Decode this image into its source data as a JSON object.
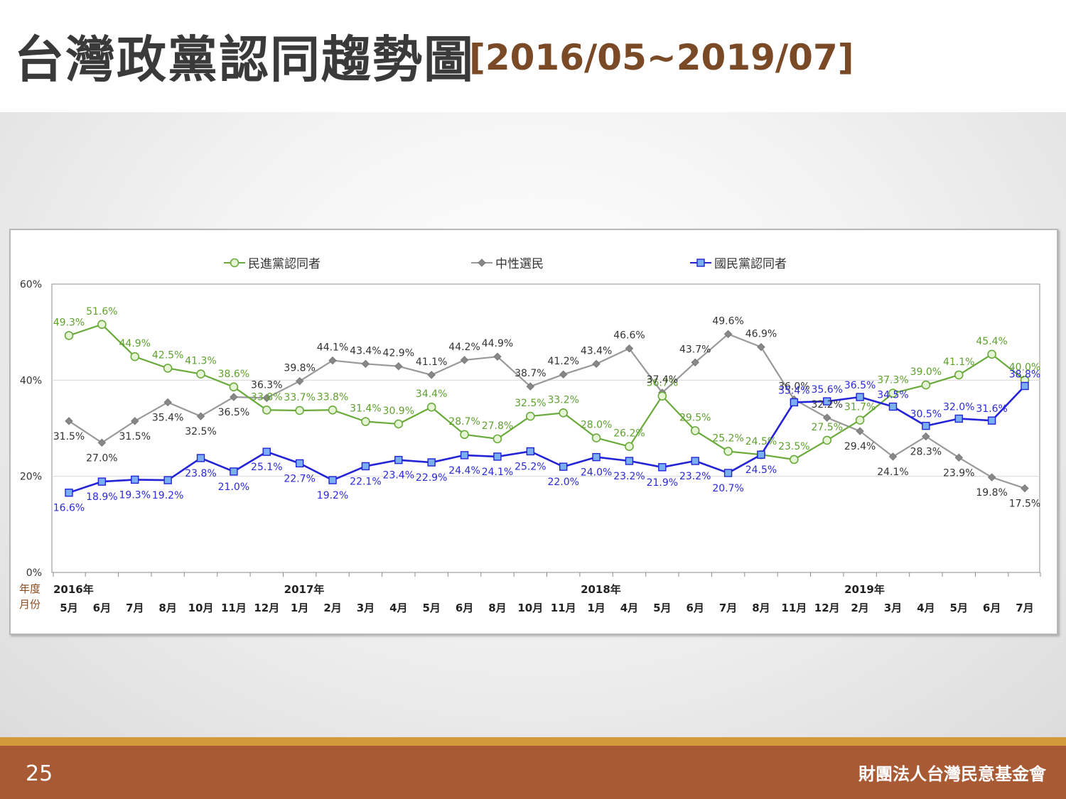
{
  "page": {
    "title": "台灣政黨認同趨勢圖",
    "title_range": "[2016/05~2019/07]",
    "page_number": "25",
    "organization": "財團法人台灣民意基金會"
  },
  "chart_data": {
    "type": "line",
    "ylim": [
      0,
      60
    ],
    "yticks": [
      "0%",
      "20%",
      "40%",
      "60%"
    ],
    "row_labels": [
      "年度",
      "月份"
    ],
    "years": [
      {
        "label": "2016年",
        "index": 0
      },
      {
        "label": "2017年",
        "index": 7
      },
      {
        "label": "2018年",
        "index": 16
      },
      {
        "label": "2019年",
        "index": 24
      }
    ],
    "categories": [
      "5月",
      "6月",
      "7月",
      "8月",
      "10月",
      "11月",
      "12月",
      "1月",
      "2月",
      "3月",
      "4月",
      "5月",
      "6月",
      "8月",
      "10月",
      "11月",
      "1月",
      "4月",
      "5月",
      "6月",
      "7月",
      "8月",
      "11月",
      "12月",
      "2月",
      "3月",
      "4月",
      "5月",
      "6月",
      "7月"
    ],
    "legend_position": "top",
    "series": [
      {
        "name": "民進黨認同者",
        "color": "#6aaa3a",
        "marker": "circle",
        "values": [
          49.3,
          51.6,
          44.9,
          42.5,
          41.3,
          38.6,
          33.8,
          33.7,
          33.8,
          31.4,
          30.9,
          34.4,
          28.7,
          27.8,
          32.5,
          33.2,
          28.0,
          26.2,
          36.7,
          29.5,
          25.2,
          24.5,
          23.5,
          27.5,
          31.7,
          37.3,
          39.0,
          41.1,
          45.4,
          40.0
        ],
        "labels": [
          "49.3%",
          "51.6%",
          "44.9%",
          "42.5%",
          "41.3%",
          "38.6%",
          "33.8%",
          "33.7%",
          "33.8%",
          "31.4%",
          "30.9%",
          "34.4%",
          "28.7%",
          "27.8%",
          "32.5%",
          "33.2%",
          "28.0%",
          "26.2%",
          "36.7%",
          "29.5%",
          "25.2%",
          "24.5%",
          "23.5%",
          "27.5%",
          "31.7%",
          "37.3%",
          "39.0%",
          "41.1%",
          "45.4%",
          "40.0%"
        ]
      },
      {
        "name": "中性選民",
        "color": "#999999",
        "marker": "diamond",
        "values": [
          31.5,
          27.0,
          31.5,
          35.4,
          32.5,
          36.5,
          36.3,
          39.8,
          44.1,
          43.4,
          42.9,
          41.1,
          44.2,
          44.9,
          38.7,
          41.2,
          43.4,
          46.6,
          37.4,
          43.7,
          49.6,
          46.9,
          36.0,
          32.2,
          29.4,
          24.1,
          28.3,
          23.9,
          19.8,
          17.5
        ],
        "labels": [
          "31.5%",
          "27.0%",
          "31.5%",
          "35.4%",
          "32.5%",
          "36.5%",
          "36.3%",
          "39.8%",
          "44.1%",
          "43.4%",
          "42.9%",
          "41.1%",
          "44.2%",
          "44.9%",
          "38.7%",
          "41.2%",
          "43.4%",
          "46.6%",
          "37.4%",
          "43.7%",
          "49.6%",
          "46.9%",
          "36.0%",
          "32.2%",
          "29.4%",
          "24.1%",
          "28.3%",
          "23.9%",
          "19.8%",
          "17.5%"
        ]
      },
      {
        "name": "國民黨認同者",
        "color": "#2323d8",
        "marker": "square",
        "values": [
          16.6,
          18.9,
          19.3,
          19.2,
          23.8,
          21.0,
          25.1,
          22.7,
          19.2,
          22.1,
          23.4,
          22.9,
          24.4,
          24.1,
          25.2,
          22.0,
          24.0,
          23.2,
          21.9,
          23.2,
          20.7,
          24.5,
          35.4,
          35.6,
          36.5,
          34.5,
          30.5,
          32.0,
          31.6,
          38.8
        ],
        "labels": [
          "16.6%",
          "18.9%",
          "19.3%",
          "19.2%",
          "23.8%",
          "21.0%",
          "25.1%",
          "22.7%",
          "19.2%",
          "22.1%",
          "23.4%",
          "22.9%",
          "24.4%",
          "24.1%",
          "25.2%",
          "22.0%",
          "24.0%",
          "23.2%",
          "21.9%",
          "23.2%",
          "20.7%",
          "24.5%",
          "35.4%",
          "35.6%",
          "36.5%",
          "34.5%",
          "30.5%",
          "32.0%",
          "31.6%",
          "38.8%"
        ]
      }
    ]
  }
}
